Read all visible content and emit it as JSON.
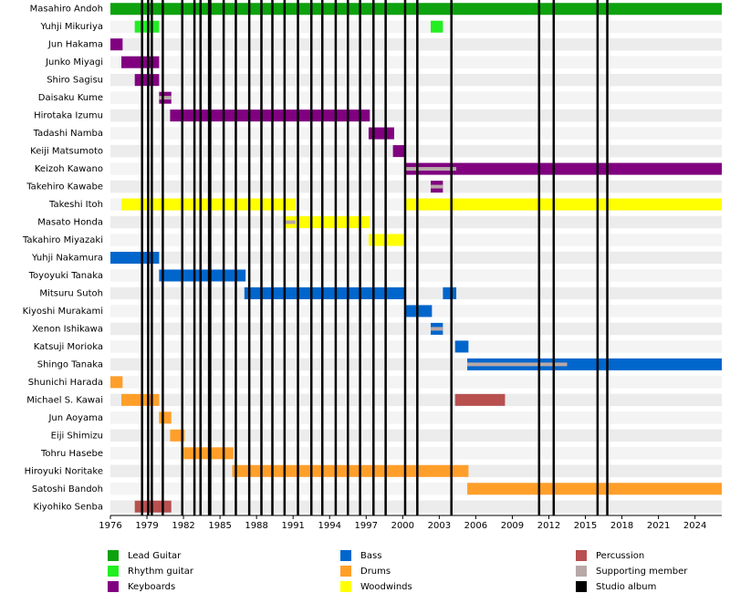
{
  "chart_data": {
    "type": "timeline",
    "xlim": [
      1976,
      2026.2
    ],
    "xticks": [
      1976,
      1979,
      1982,
      1985,
      1988,
      1991,
      1994,
      1997,
      2000,
      2003,
      2006,
      2009,
      2012,
      2015,
      2018,
      2021,
      2024
    ],
    "roles": [
      {
        "name": "Lead Guitar",
        "color": "#0ea20e"
      },
      {
        "name": "Rhythm guitar",
        "color": "#22ee22"
      },
      {
        "name": "Keyboards",
        "color": "#800080"
      },
      {
        "name": "Bass",
        "color": "#0066cc"
      },
      {
        "name": "Drums",
        "color": "#ff9f2a"
      },
      {
        "name": "Woodwinds",
        "color": "#ffff00"
      },
      {
        "name": "Percussion",
        "color": "#b85050"
      },
      {
        "name": "Supporting member",
        "color": "#b8a8a8"
      },
      {
        "name": "Studio album",
        "color": "#000000"
      }
    ],
    "albums": [
      1978.6,
      1979.1,
      1979.4,
      1980.3,
      1981.9,
      1982.9,
      1983.4,
      1984.1,
      1984.2,
      1985.3,
      1986.3,
      1987.4,
      1988.4,
      1989.3,
      1990.3,
      1991.4,
      1992.5,
      1993.4,
      1994.5,
      1995.5,
      1996.5,
      1997.6,
      1998.6,
      2000.2,
      2001.2,
      2004.0,
      2011.2,
      2012.4,
      2016.0,
      2016.8
    ],
    "members": [
      {
        "name": "Masahiro Andoh",
        "spans": [
          {
            "role": 0,
            "start": 1976,
            "end": 2026.2
          }
        ]
      },
      {
        "name": "Yuhji Mikuriya",
        "spans": [
          {
            "role": 1,
            "start": 1978.0,
            "end": 1980.0
          },
          {
            "role": 1,
            "start": 2002.3,
            "end": 2003.3
          }
        ]
      },
      {
        "name": "Jun Hakama",
        "spans": [
          {
            "role": 2,
            "start": 1976,
            "end": 1977.0
          }
        ]
      },
      {
        "name": "Junko Miyagi",
        "spans": [
          {
            "role": 2,
            "start": 1976.9,
            "end": 1980.0
          }
        ]
      },
      {
        "name": "Shiro Sagisu",
        "spans": [
          {
            "role": 2,
            "start": 1978.0,
            "end": 1980.0
          }
        ]
      },
      {
        "name": "Daisaku Kume",
        "spans": [
          {
            "role": 2,
            "start": 1980.0,
            "end": 1981.0
          },
          {
            "role": 7,
            "start": 1980.0,
            "end": 1981.0
          }
        ]
      },
      {
        "name": "Hirotaka Izumu",
        "spans": [
          {
            "role": 2,
            "start": 1980.9,
            "end": 1997.3
          }
        ]
      },
      {
        "name": "Tadashi Namba",
        "spans": [
          {
            "role": 2,
            "start": 1997.2,
            "end": 1999.3
          }
        ]
      },
      {
        "name": "Keiji Matsumoto",
        "spans": [
          {
            "role": 2,
            "start": 1999.2,
            "end": 2000.2
          }
        ]
      },
      {
        "name": "Keizoh Kawano",
        "spans": [
          {
            "role": 2,
            "start": 2000.2,
            "end": 2026.2
          },
          {
            "role": 7,
            "start": 2000.2,
            "end": 2004.4
          }
        ]
      },
      {
        "name": "Takehiro Kawabe",
        "spans": [
          {
            "role": 2,
            "start": 2002.3,
            "end": 2003.3
          },
          {
            "role": 7,
            "start": 2002.3,
            "end": 2003.3
          }
        ]
      },
      {
        "name": "Takeshi Itoh",
        "spans": [
          {
            "role": 5,
            "start": 1976.9,
            "end": 1991.2
          },
          {
            "role": 5,
            "start": 2000.2,
            "end": 2026.2
          }
        ]
      },
      {
        "name": "Masato Honda",
        "spans": [
          {
            "role": 5,
            "start": 1990.2,
            "end": 1997.3
          },
          {
            "role": 7,
            "start": 1990.2,
            "end": 1991.2
          }
        ]
      },
      {
        "name": "Takahiro Miyazaki",
        "spans": [
          {
            "role": 5,
            "start": 1997.2,
            "end": 2000.2
          }
        ]
      },
      {
        "name": "Yuhji Nakamura",
        "spans": [
          {
            "role": 3,
            "start": 1976,
            "end": 1980.0
          }
        ]
      },
      {
        "name": "Toyoyuki Tanaka",
        "spans": [
          {
            "role": 3,
            "start": 1980.0,
            "end": 1987.1
          }
        ]
      },
      {
        "name": "Mitsuru Sutoh",
        "spans": [
          {
            "role": 3,
            "start": 1987.0,
            "end": 2000.2
          },
          {
            "role": 3,
            "start": 2003.3,
            "end": 2004.4
          }
        ]
      },
      {
        "name": "Kiyoshi Murakami",
        "spans": [
          {
            "role": 3,
            "start": 2000.2,
            "end": 2002.4
          }
        ]
      },
      {
        "name": "Xenon Ishikawa",
        "spans": [
          {
            "role": 3,
            "start": 2002.3,
            "end": 2003.3
          },
          {
            "role": 7,
            "start": 2002.3,
            "end": 2003.3
          }
        ]
      },
      {
        "name": "Katsuji Morioka",
        "spans": [
          {
            "role": 3,
            "start": 2004.3,
            "end": 2005.4
          }
        ]
      },
      {
        "name": "Shingo Tanaka",
        "spans": [
          {
            "role": 3,
            "start": 2005.3,
            "end": 2026.2
          },
          {
            "role": 7,
            "start": 2005.3,
            "end": 2013.5
          }
        ]
      },
      {
        "name": "Shunichi Harada",
        "spans": [
          {
            "role": 4,
            "start": 1976,
            "end": 1977.0
          }
        ]
      },
      {
        "name": "Michael S. Kawai",
        "spans": [
          {
            "role": 4,
            "start": 1976.9,
            "end": 1980.0
          },
          {
            "role": 6,
            "start": 2004.3,
            "end": 2008.4
          }
        ]
      },
      {
        "name": "Jun Aoyama",
        "spans": [
          {
            "role": 4,
            "start": 1980.0,
            "end": 1981.0
          }
        ]
      },
      {
        "name": "Eiji Shimizu",
        "spans": [
          {
            "role": 4,
            "start": 1980.9,
            "end": 1982.1
          }
        ]
      },
      {
        "name": "Tohru Hasebe",
        "spans": [
          {
            "role": 4,
            "start": 1982.0,
            "end": 1986.1
          }
        ]
      },
      {
        "name": "Hiroyuki Noritake",
        "spans": [
          {
            "role": 4,
            "start": 1986.0,
            "end": 2005.4
          }
        ]
      },
      {
        "name": "Satoshi Bandoh",
        "spans": [
          {
            "role": 4,
            "start": 2005.3,
            "end": 2026.2
          }
        ]
      },
      {
        "name": "Kiyohiko Senba",
        "spans": [
          {
            "role": 6,
            "start": 1978.0,
            "end": 1981.0
          }
        ]
      }
    ]
  }
}
